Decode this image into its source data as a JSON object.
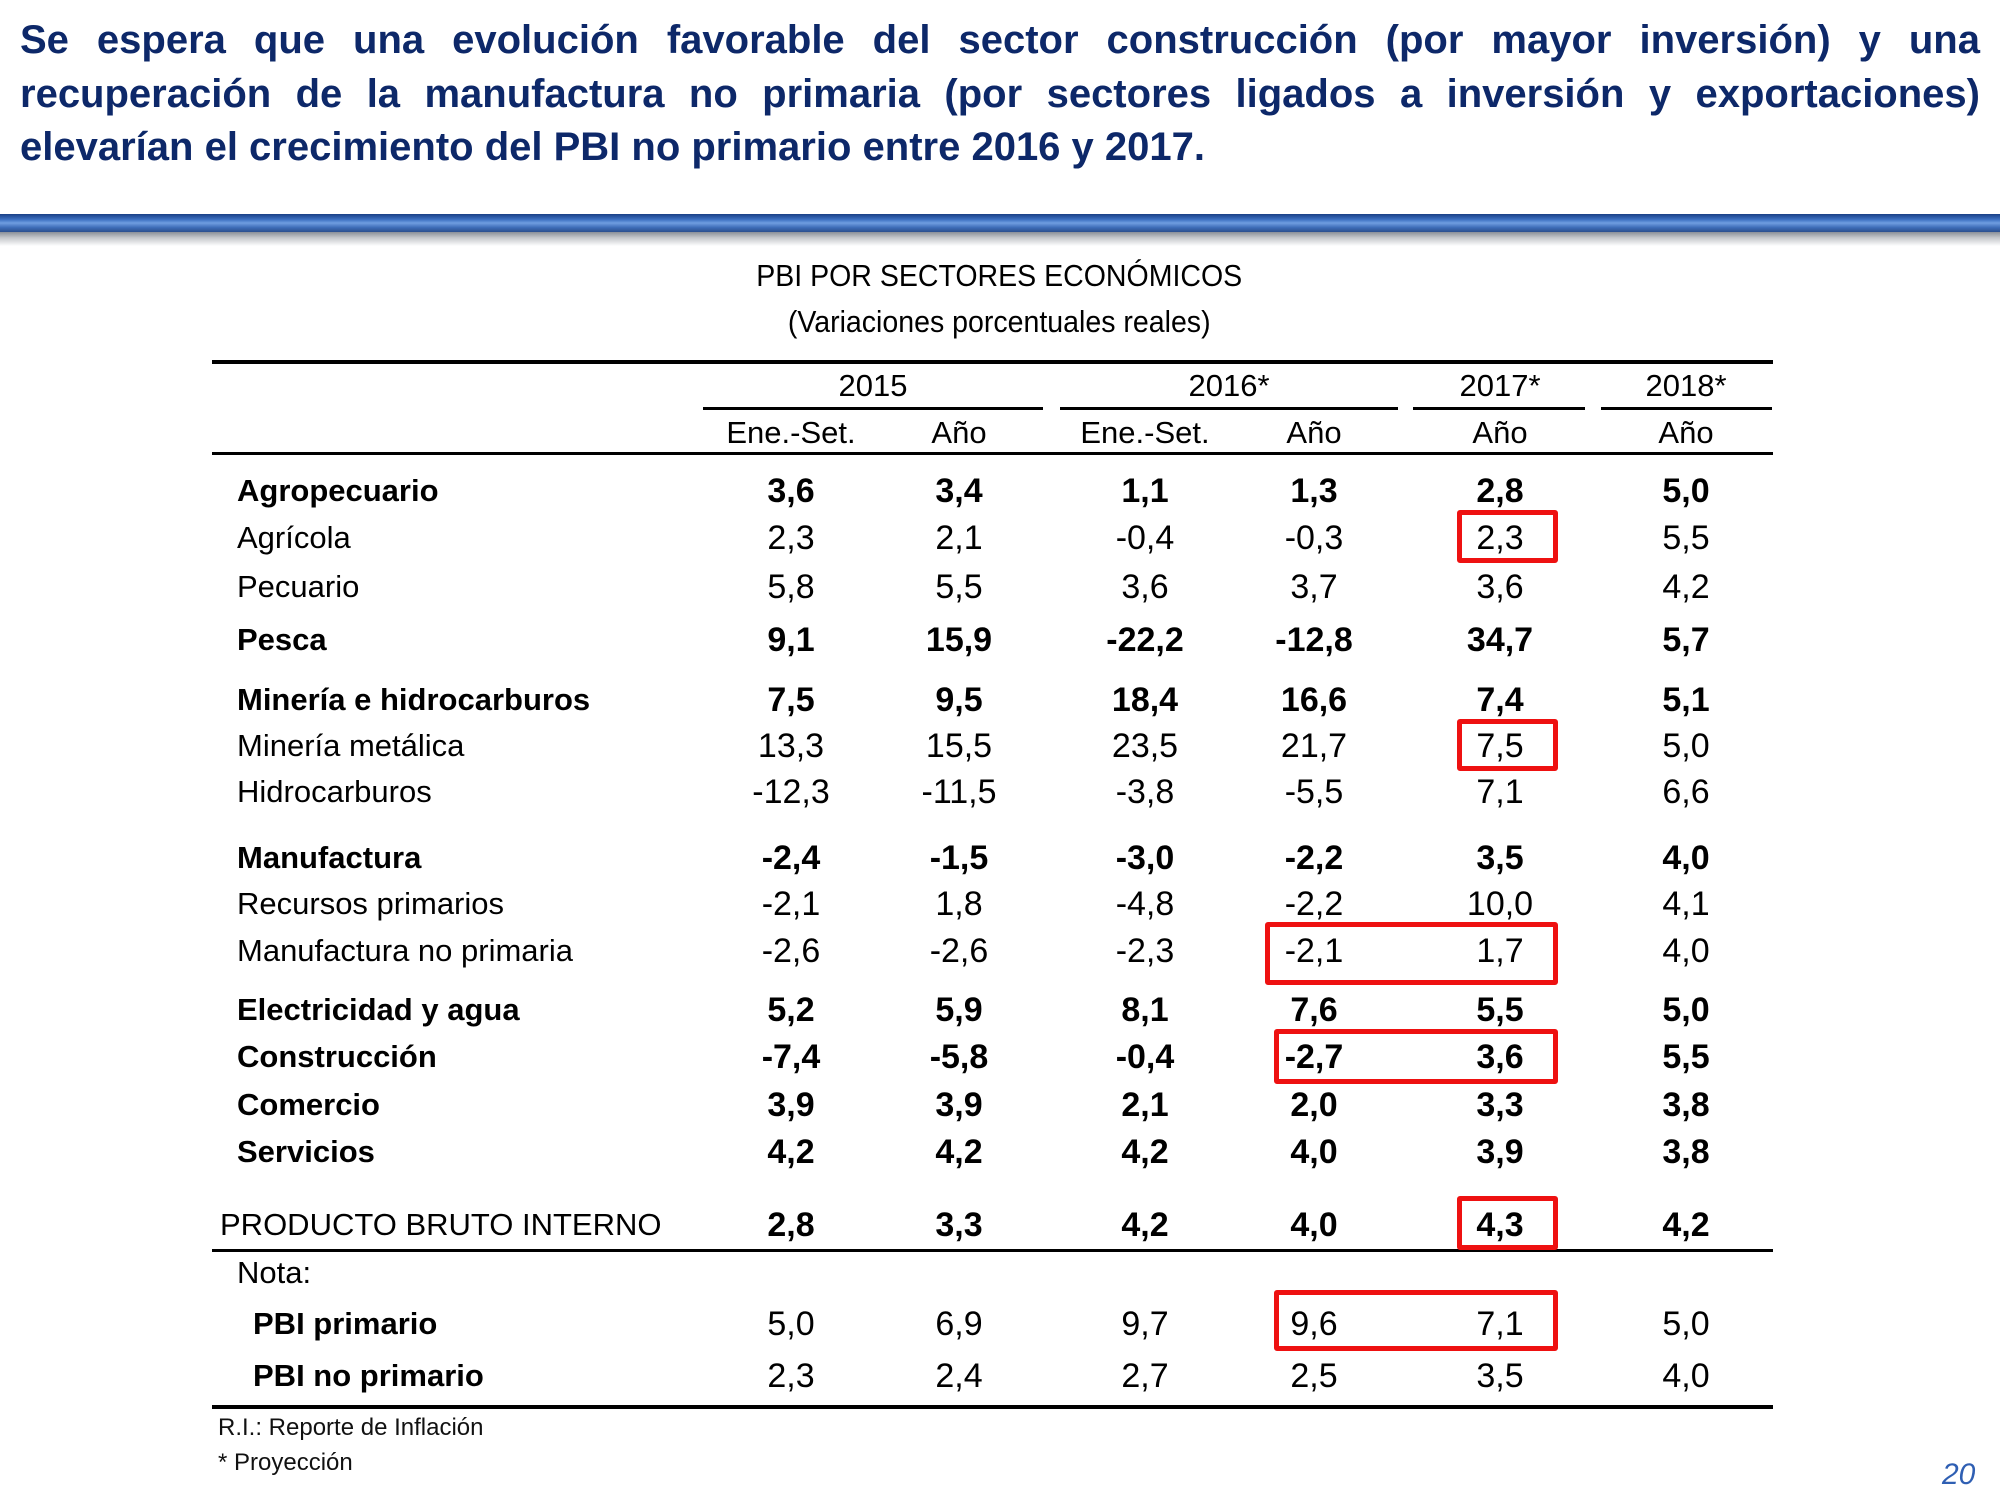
{
  "slide": {
    "title": "Se espera que una evolución favorable del sector construcción (por mayor inversión) y una recuperación de la manufactura no primaria (por sectores ligados a inversión y exportaciones) elevarían el crecimiento del PBI no primario entre 2016 y 2017.",
    "page_number": "20",
    "accent_color": "#0d2869",
    "highlight_color": "#ee1111"
  },
  "table": {
    "title": "PBI POR SECTORES ECONÓMICOS",
    "subtitle": "(Variaciones porcentuales reales)",
    "year_headers": [
      "2015",
      "2016*",
      "2017*",
      "2018*"
    ],
    "sub_headers": [
      "Ene.-Set.",
      "Año",
      "Ene.-Set.",
      "Año",
      "Año",
      "Año"
    ],
    "rows": [
      {
        "label": "Agropecuario",
        "bold": true,
        "values": [
          "3,6",
          "3,4",
          "1,1",
          "1,3",
          "2,8",
          "5,0"
        ]
      },
      {
        "label": "Agrícola",
        "bold": false,
        "values": [
          "2,3",
          "2,1",
          "-0,4",
          "-0,3",
          "2,3",
          "5,5"
        ]
      },
      {
        "label": "Pecuario",
        "bold": false,
        "values": [
          "5,8",
          "5,5",
          "3,6",
          "3,7",
          "3,6",
          "4,2"
        ]
      },
      {
        "label": "Pesca",
        "bold": true,
        "values": [
          "9,1",
          "15,9",
          "-22,2",
          "-12,8",
          "34,7",
          "5,7"
        ]
      },
      {
        "label": "Minería e hidrocarburos",
        "bold": true,
        "values": [
          "7,5",
          "9,5",
          "18,4",
          "16,6",
          "7,4",
          "5,1"
        ]
      },
      {
        "label": "Minería metálica",
        "bold": false,
        "values": [
          "13,3",
          "15,5",
          "23,5",
          "21,7",
          "7,5",
          "5,0"
        ]
      },
      {
        "label": "Hidrocarburos",
        "bold": false,
        "values": [
          "-12,3",
          "-11,5",
          "-3,8",
          "-5,5",
          "7,1",
          "6,6"
        ]
      },
      {
        "label": "Manufactura",
        "bold": true,
        "values": [
          "-2,4",
          "-1,5",
          "-3,0",
          "-2,2",
          "3,5",
          "4,0"
        ]
      },
      {
        "label": "Recursos primarios",
        "bold": false,
        "values": [
          "-2,1",
          "1,8",
          "-4,8",
          "-2,2",
          "10,0",
          "4,1"
        ]
      },
      {
        "label": "Manufactura no primaria",
        "bold": false,
        "values": [
          "-2,6",
          "-2,6",
          "-2,3",
          "-2,1",
          "1,7",
          "4,0"
        ]
      },
      {
        "label": "Electricidad y agua",
        "bold": true,
        "values": [
          "5,2",
          "5,9",
          "8,1",
          "7,6",
          "5,5",
          "5,0"
        ]
      },
      {
        "label": "Construcción",
        "bold": true,
        "values": [
          "-7,4",
          "-5,8",
          "-0,4",
          "-2,7",
          "3,6",
          "5,5"
        ]
      },
      {
        "label": "Comercio",
        "bold": true,
        "values": [
          "3,9",
          "3,9",
          "2,1",
          "2,0",
          "3,3",
          "3,8"
        ]
      },
      {
        "label": "Servicios",
        "bold": true,
        "values": [
          "4,2",
          "4,2",
          "4,2",
          "4,0",
          "3,9",
          "3,8"
        ]
      }
    ],
    "total_row": {
      "label": "PRODUCTO BRUTO INTERNO",
      "values": [
        "2,8",
        "3,3",
        "4,2",
        "4,0",
        "4,3",
        "4,2"
      ]
    },
    "note_label": "Nota:",
    "note_rows": [
      {
        "label": "PBI primario",
        "values": [
          "5,0",
          "6,9",
          "9,7",
          "9,6",
          "7,1",
          "5,0"
        ]
      },
      {
        "label": "PBI no primario",
        "values": [
          "2,3",
          "2,4",
          "2,7",
          "2,5",
          "3,5",
          "4,0"
        ]
      }
    ],
    "footnotes": [
      "R.I.: Reporte de Inflación",
      "* Proyección"
    ]
  }
}
